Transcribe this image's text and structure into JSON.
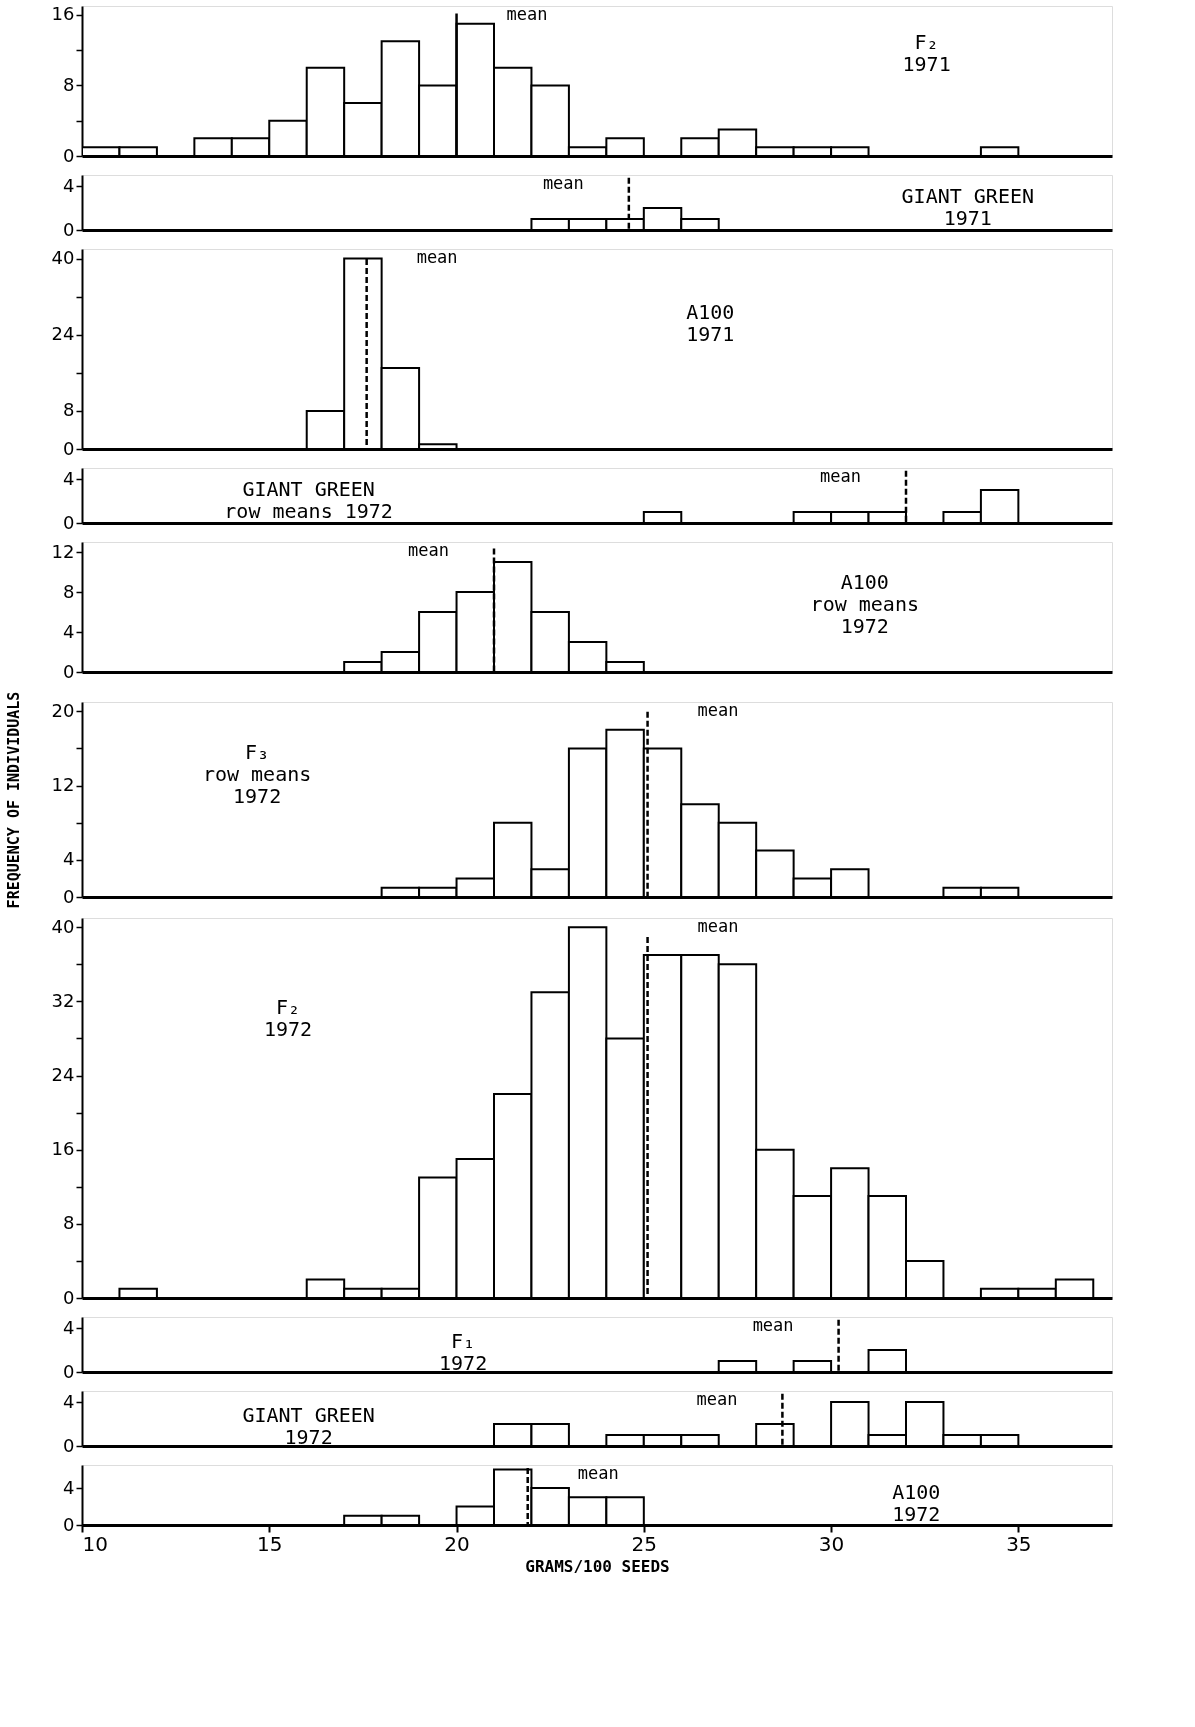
{
  "chart_data": [
    {
      "type": "histogram",
      "title": "F₂\n1971",
      "bins": [
        10,
        11,
        12,
        13,
        14,
        15,
        16,
        17,
        18,
        19,
        20,
        21,
        22,
        23,
        24,
        25,
        26,
        27,
        28,
        29,
        30,
        31,
        32,
        33,
        34,
        35,
        36,
        37
      ],
      "values": [
        1,
        1,
        0,
        2,
        2,
        4,
        10,
        6,
        13,
        8,
        15,
        10,
        8,
        1,
        2,
        0,
        2,
        3,
        1,
        1,
        1,
        0,
        0,
        0,
        1,
        0,
        0
      ],
      "xlim": [
        10,
        37.5
      ],
      "ylim": [
        0,
        17
      ],
      "yticks": [
        0,
        {
          "value": 4,
          "label": null
        },
        8,
        {
          "value": 12,
          "label": null
        },
        16
      ],
      "tick_labels": "y",
      "ref_lines": [
        {
          "axis": "x",
          "value": 20,
          "label": "mean",
          "line_style": "solid"
        }
      ]
    },
    {
      "type": "histogram",
      "title": "GIANT GREEN\n1971",
      "bins": [
        10,
        11,
        12,
        13,
        14,
        15,
        16,
        17,
        18,
        19,
        20,
        21,
        22,
        23,
        24,
        25,
        26,
        27,
        28,
        29,
        30,
        31,
        32,
        33,
        34,
        35,
        36,
        37
      ],
      "values": [
        0,
        0,
        0,
        0,
        0,
        0,
        0,
        0,
        0,
        0,
        0,
        0,
        1,
        1,
        1,
        2,
        1,
        0,
        0,
        0,
        0,
        0,
        0,
        0,
        0,
        0,
        0
      ],
      "xlim": [
        10,
        37.5
      ],
      "ylim": [
        0,
        5
      ],
      "yticks": [
        0,
        4
      ],
      "tick_labels": "y",
      "ref_lines": [
        {
          "axis": "x",
          "value": 24.6,
          "label": "mean",
          "line_style": "dashed"
        }
      ]
    },
    {
      "type": "histogram",
      "title": "A100\n1971",
      "bins": [
        10,
        11,
        12,
        13,
        14,
        15,
        16,
        17,
        18,
        19,
        20,
        21,
        22,
        23,
        24,
        25,
        26,
        27,
        28,
        29,
        30,
        31,
        32,
        33,
        34,
        35,
        36,
        37
      ],
      "values": [
        0,
        0,
        0,
        0,
        0,
        0,
        8,
        40,
        17,
        1,
        0,
        0,
        0,
        0,
        0,
        0,
        0,
        0,
        0,
        0,
        0,
        0,
        0,
        0,
        0,
        0,
        0
      ],
      "xlim": [
        10,
        37.5
      ],
      "ylim": [
        0,
        42
      ],
      "yticks": [
        0,
        8,
        {
          "value": 16,
          "label": null
        },
        24,
        {
          "value": 32,
          "label": null
        },
        40
      ],
      "tick_labels": "y",
      "ref_lines": [
        {
          "axis": "x",
          "value": 17.6,
          "label": "mean",
          "line_style": "dashed"
        }
      ]
    },
    {
      "type": "histogram",
      "title": "GIANT GREEN\nrow means 1972",
      "bins": [
        10,
        11,
        12,
        13,
        14,
        15,
        16,
        17,
        18,
        19,
        20,
        21,
        22,
        23,
        24,
        25,
        26,
        27,
        28,
        29,
        30,
        31,
        32,
        33,
        34,
        35,
        36,
        37
      ],
      "values": [
        0,
        0,
        0,
        0,
        0,
        0,
        0,
        0,
        0,
        0,
        0,
        0,
        0,
        0,
        0,
        1,
        0,
        0,
        0,
        1,
        1,
        1,
        0,
        1,
        3,
        0,
        0
      ],
      "xlim": [
        10,
        37.5
      ],
      "ylim": [
        0,
        5
      ],
      "yticks": [
        0,
        4
      ],
      "tick_labels": "y",
      "ref_lines": [
        {
          "axis": "x",
          "value": 32,
          "label": "mean",
          "line_style": "dashed"
        }
      ]
    },
    {
      "type": "histogram",
      "title": "A100\nrow means\n1972",
      "bins": [
        10,
        11,
        12,
        13,
        14,
        15,
        16,
        17,
        18,
        19,
        20,
        21,
        22,
        23,
        24,
        25,
        26,
        27,
        28,
        29,
        30,
        31,
        32,
        33,
        34,
        35,
        36,
        37
      ],
      "values": [
        0,
        0,
        0,
        0,
        0,
        0,
        0,
        1,
        2,
        6,
        8,
        11,
        6,
        3,
        1,
        0,
        0,
        0,
        0,
        0,
        0,
        0,
        0,
        0,
        0,
        0,
        0
      ],
      "xlim": [
        10,
        37.5
      ],
      "ylim": [
        0,
        13
      ],
      "yticks": [
        0,
        4,
        8,
        12
      ],
      "tick_labels": "y",
      "ref_lines": [
        {
          "axis": "x",
          "value": 21,
          "label": "mean",
          "line_style": "dashed"
        }
      ]
    },
    {
      "type": "histogram",
      "title": "F₃\nrow means\n1972",
      "ylabel": "FREQUENCY OF INDIVIDUALS",
      "bins": [
        10,
        11,
        12,
        13,
        14,
        15,
        16,
        17,
        18,
        19,
        20,
        21,
        22,
        23,
        24,
        25,
        26,
        27,
        28,
        29,
        30,
        31,
        32,
        33,
        34,
        35,
        36,
        37
      ],
      "values": [
        0,
        0,
        0,
        0,
        0,
        0,
        0,
        0,
        1,
        1,
        2,
        8,
        3,
        16,
        18,
        16,
        10,
        8,
        5,
        2,
        3,
        0,
        0,
        1,
        1,
        0,
        0
      ],
      "xlim": [
        10,
        37.5
      ],
      "ylim": [
        0,
        21
      ],
      "yticks": [
        0,
        4,
        {
          "value": 8,
          "label": null
        },
        12,
        {
          "value": 16,
          "label": null
        },
        20
      ],
      "tick_labels": "y",
      "ref_lines": [
        {
          "axis": "x",
          "value": 25.1,
          "label": "mean",
          "line_style": "dashed"
        }
      ]
    },
    {
      "type": "histogram",
      "title": "F₂\n1972",
      "bins": [
        10,
        11,
        12,
        13,
        14,
        15,
        16,
        17,
        18,
        19,
        20,
        21,
        22,
        23,
        24,
        25,
        26,
        27,
        28,
        29,
        30,
        31,
        32,
        33,
        34,
        35,
        36,
        37
      ],
      "values": [
        0,
        1,
        0,
        0,
        0,
        0,
        2,
        1,
        1,
        13,
        15,
        22,
        33,
        40,
        28,
        37,
        37,
        36,
        16,
        11,
        14,
        11,
        4,
        0,
        1,
        1,
        2
      ],
      "xlim": [
        10,
        37.5
      ],
      "ylim": [
        0,
        41
      ],
      "yticks": [
        0,
        {
          "value": 4,
          "label": null
        },
        8,
        {
          "value": 12,
          "label": null
        },
        16,
        {
          "value": 20,
          "label": null
        },
        24,
        {
          "value": 28,
          "label": null
        },
        32,
        {
          "value": 36,
          "label": null
        },
        40
      ],
      "tick_labels": "y",
      "ref_lines": [
        {
          "axis": "x",
          "value": 25.1,
          "label": "mean",
          "line_style": "dashed"
        }
      ]
    },
    {
      "type": "histogram",
      "title": "F₁\n1972",
      "bins": [
        10,
        11,
        12,
        13,
        14,
        15,
        16,
        17,
        18,
        19,
        20,
        21,
        22,
        23,
        24,
        25,
        26,
        27,
        28,
        29,
        30,
        31,
        32,
        33,
        34,
        35,
        36,
        37
      ],
      "values": [
        0,
        0,
        0,
        0,
        0,
        0,
        0,
        0,
        0,
        0,
        0,
        0,
        0,
        0,
        0,
        0,
        0,
        1,
        0,
        1,
        0,
        2,
        0,
        0,
        0,
        0,
        0
      ],
      "xlim": [
        10,
        37.5
      ],
      "ylim": [
        0,
        5
      ],
      "yticks": [
        0,
        4
      ],
      "tick_labels": "y",
      "ref_lines": [
        {
          "axis": "x",
          "value": 30.2,
          "label": "mean",
          "line_style": "dashed"
        }
      ]
    },
    {
      "type": "histogram",
      "title": "GIANT GREEN\n1972",
      "bins": [
        10,
        11,
        12,
        13,
        14,
        15,
        16,
        17,
        18,
        19,
        20,
        21,
        22,
        23,
        24,
        25,
        26,
        27,
        28,
        29,
        30,
        31,
        32,
        33,
        34,
        35,
        36,
        37
      ],
      "values": [
        0,
        0,
        0,
        0,
        0,
        0,
        0,
        0,
        0,
        0,
        0,
        2,
        2,
        0,
        1,
        1,
        1,
        0,
        2,
        0,
        4,
        1,
        4,
        1,
        1,
        0,
        0
      ],
      "xlim": [
        10,
        37.5
      ],
      "ylim": [
        0,
        5
      ],
      "yticks": [
        0,
        4
      ],
      "tick_labels": "y",
      "ref_lines": [
        {
          "axis": "x",
          "value": 28.7,
          "label": "mean",
          "line_style": "dashed"
        }
      ]
    },
    {
      "type": "histogram",
      "title": "A100\n1972",
      "xlabel": "GRAMS/100 SEEDS",
      "bins": [
        10,
        11,
        12,
        13,
        14,
        15,
        16,
        17,
        18,
        19,
        20,
        21,
        22,
        23,
        24,
        25,
        26,
        27,
        28,
        29,
        30,
        31,
        32,
        33,
        34,
        35,
        36,
        37
      ],
      "values": [
        0,
        0,
        0,
        0,
        0,
        0,
        0,
        1,
        1,
        0,
        2,
        6,
        4,
        3,
        3,
        0,
        0,
        0,
        0,
        0,
        0,
        0,
        0,
        0,
        0,
        0,
        0
      ],
      "xlim": [
        10,
        37.5
      ],
      "ylim": [
        0,
        6.5
      ],
      "xticks": [
        10,
        15,
        20,
        25,
        30,
        35
      ],
      "yticks": [
        0,
        4
      ],
      "ref_lines": [
        {
          "axis": "x",
          "value": 21.9,
          "label": "mean",
          "line_style": "dashed"
        }
      ]
    }
  ]
}
